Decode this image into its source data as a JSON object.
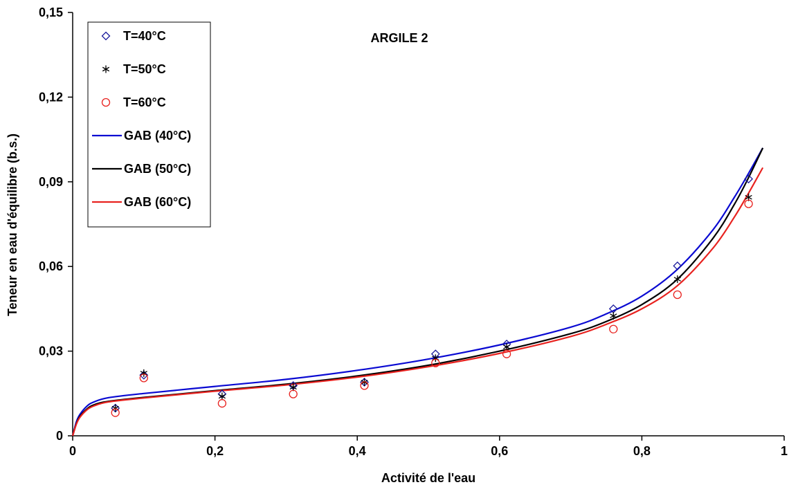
{
  "chart_data": {
    "type": "scatter",
    "title": "",
    "annotation": "ARGILE 2",
    "xlabel": "Activité de l'eau",
    "ylabel": "Teneur en eau d'équilibre (b.s.)",
    "xlim": [
      0,
      1
    ],
    "ylim": [
      0,
      0.15
    ],
    "xticks": [
      0,
      0.2,
      0.4,
      0.6,
      0.8,
      1
    ],
    "xtick_labels": [
      "0",
      "0,2",
      "0,4",
      "0,6",
      "0,8",
      "1"
    ],
    "yticks": [
      0,
      0.03,
      0.06,
      0.09,
      0.12,
      0.15
    ],
    "ytick_labels": [
      "0",
      "0,03",
      "0,06",
      "0,09",
      "0,12",
      "0,15"
    ],
    "grid": false,
    "legend_position": "top-left",
    "series": [
      {
        "name": "T=40°C",
        "kind": "points",
        "marker": "diamond",
        "color": "#1a1a9c",
        "x": [
          0.06,
          0.1,
          0.21,
          0.31,
          0.41,
          0.51,
          0.61,
          0.76,
          0.85,
          0.95
        ],
        "y": [
          0.0098,
          0.0215,
          0.0148,
          0.0178,
          0.019,
          0.029,
          0.0325,
          0.045,
          0.0602,
          0.091
        ]
      },
      {
        "name": "T=50°C",
        "kind": "points",
        "marker": "asterisk",
        "color": "#000000",
        "x": [
          0.06,
          0.1,
          0.21,
          0.31,
          0.41,
          0.51,
          0.61,
          0.76,
          0.85,
          0.95
        ],
        "y": [
          0.0098,
          0.0222,
          0.014,
          0.0172,
          0.019,
          0.0275,
          0.0315,
          0.0425,
          0.0555,
          0.0845
        ]
      },
      {
        "name": "T=60°C",
        "kind": "points",
        "marker": "circle",
        "color": "#e8221f",
        "x": [
          0.06,
          0.1,
          0.21,
          0.31,
          0.41,
          0.51,
          0.61,
          0.76,
          0.85,
          0.95
        ],
        "y": [
          0.0082,
          0.0205,
          0.0115,
          0.0148,
          0.0178,
          0.0258,
          0.029,
          0.0378,
          0.05,
          0.0822
        ]
      },
      {
        "name": "GAB (40°C)",
        "kind": "line",
        "color": "#0a0ad2",
        "x": [
          0,
          0.005,
          0.01,
          0.02,
          0.03,
          0.05,
          0.1,
          0.2,
          0.3,
          0.4,
          0.5,
          0.6,
          0.7,
          0.75,
          0.8,
          0.85,
          0.9,
          0.93,
          0.95,
          0.97
        ],
        "y": [
          0,
          0.0048,
          0.0075,
          0.0105,
          0.012,
          0.0135,
          0.015,
          0.0175,
          0.02,
          0.0232,
          0.0272,
          0.0322,
          0.0385,
          0.0432,
          0.0495,
          0.059,
          0.073,
          0.0845,
          0.093,
          0.102
        ]
      },
      {
        "name": "GAB (50°C)",
        "kind": "line",
        "color": "#000000",
        "x": [
          0,
          0.005,
          0.01,
          0.02,
          0.03,
          0.05,
          0.1,
          0.2,
          0.3,
          0.4,
          0.5,
          0.6,
          0.7,
          0.75,
          0.8,
          0.85,
          0.9,
          0.93,
          0.95,
          0.97
        ],
        "y": [
          0,
          0.0042,
          0.0068,
          0.0095,
          0.011,
          0.0122,
          0.0136,
          0.016,
          0.0183,
          0.0212,
          0.025,
          0.03,
          0.0362,
          0.0405,
          0.0465,
          0.0555,
          0.07,
          0.082,
          0.0915,
          0.102
        ]
      },
      {
        "name": "GAB (60°C)",
        "kind": "line",
        "color": "#e8221f",
        "x": [
          0,
          0.005,
          0.01,
          0.02,
          0.03,
          0.05,
          0.1,
          0.2,
          0.3,
          0.4,
          0.5,
          0.6,
          0.7,
          0.75,
          0.8,
          0.85,
          0.9,
          0.93,
          0.95,
          0.97
        ],
        "y": [
          0,
          0.004,
          0.0065,
          0.0092,
          0.0106,
          0.012,
          0.0134,
          0.0158,
          0.018,
          0.0208,
          0.0245,
          0.0292,
          0.0352,
          0.0395,
          0.045,
          0.0532,
          0.0665,
          0.0775,
          0.086,
          0.095
        ]
      }
    ]
  }
}
